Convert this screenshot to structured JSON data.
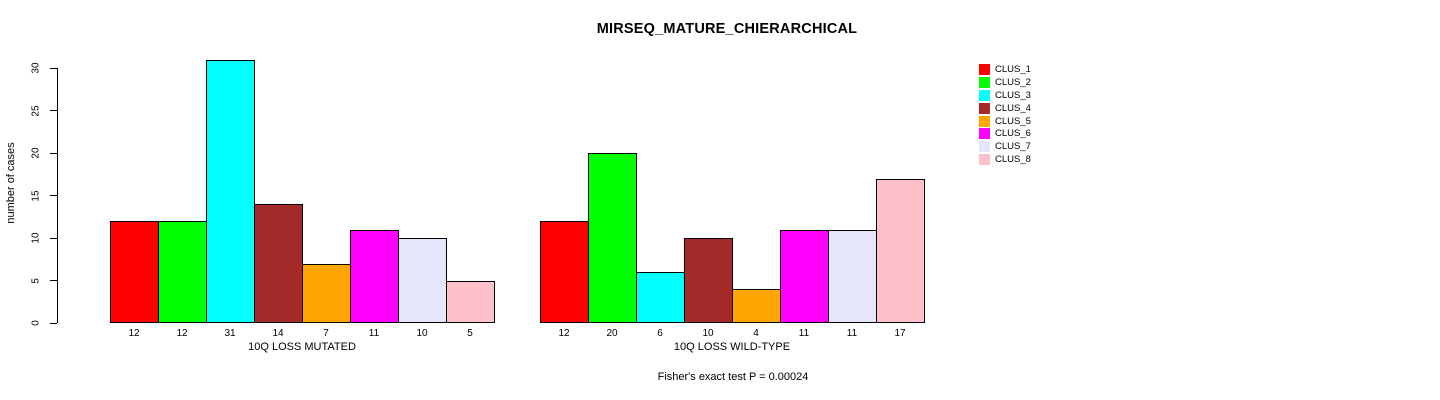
{
  "chart_data": {
    "type": "bar",
    "title": "MIRSEQ_MATURE_CHIERARCHICAL",
    "subtitle": "Fisher's exact test P = 0.00024",
    "ylabel": "number of cases",
    "xlabel": "",
    "ylim": [
      0,
      31
    ],
    "yticks": [
      0,
      5,
      10,
      15,
      20,
      25,
      30
    ],
    "grid": false,
    "bar_value_labels": true,
    "legend_position": "right",
    "categories": [
      "10Q LOSS MUTATED",
      "10Q LOSS WILD-TYPE"
    ],
    "series": [
      {
        "name": "CLUS_1",
        "color": "#FF0000",
        "values": [
          12,
          12
        ]
      },
      {
        "name": "CLUS_2",
        "color": "#00FF00",
        "values": [
          12,
          20
        ]
      },
      {
        "name": "CLUS_3",
        "color": "#00FFFF",
        "values": [
          31,
          6
        ]
      },
      {
        "name": "CLUS_4",
        "color": "#A52A2A",
        "values": [
          14,
          10
        ]
      },
      {
        "name": "CLUS_5",
        "color": "#FFA500",
        "values": [
          7,
          4
        ]
      },
      {
        "name": "CLUS_6",
        "color": "#FF00FF",
        "values": [
          11,
          11
        ]
      },
      {
        "name": "CLUS_7",
        "color": "#E6E6FA",
        "values": [
          10,
          11
        ]
      },
      {
        "name": "CLUS_8",
        "color": "#FFC0CB",
        "values": [
          5,
          17
        ]
      }
    ]
  }
}
